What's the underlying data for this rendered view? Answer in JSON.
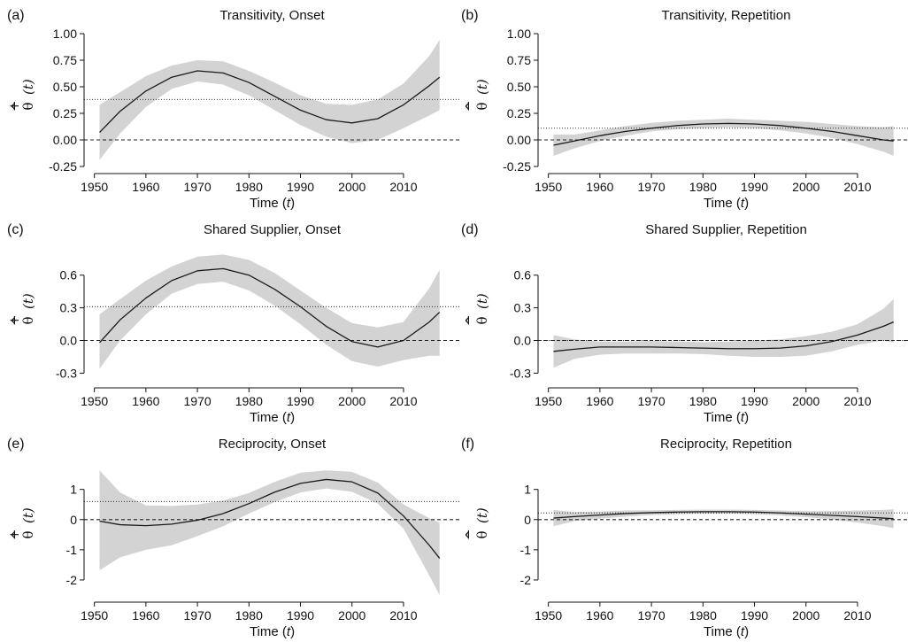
{
  "xlabel": {
    "prefix": "Time (",
    "var": "t",
    "suffix": ")"
  },
  "ylabel_onset": {
    "hat": "^",
    "symbol": "θ",
    "sup": "+",
    "arg": "(t)"
  },
  "ylabel_repetition": {
    "hat": "^",
    "symbol": "θ",
    "sup": "−",
    "arg": "(t)"
  },
  "colors": {
    "line": "#1a1a1a",
    "band": "#d3d3d3",
    "axis": "#111111"
  },
  "chart_data": [
    {
      "id": "a",
      "panel_label": "(a)",
      "title": "Transitivity, Onset",
      "kind": "onset",
      "type": "line",
      "x": [
        1951,
        1955,
        1960,
        1965,
        1970,
        1975,
        1980,
        1985,
        1990,
        1995,
        2000,
        2005,
        2010,
        2015,
        2017
      ],
      "y": [
        0.07,
        0.27,
        0.46,
        0.59,
        0.65,
        0.63,
        0.54,
        0.41,
        0.28,
        0.19,
        0.16,
        0.2,
        0.33,
        0.51,
        0.59
      ],
      "lower": [
        -0.19,
        0.06,
        0.31,
        0.48,
        0.55,
        0.52,
        0.42,
        0.28,
        0.14,
        0.03,
        -0.03,
        0.0,
        0.11,
        0.23,
        0.28
      ],
      "upper": [
        0.33,
        0.45,
        0.6,
        0.7,
        0.75,
        0.74,
        0.65,
        0.54,
        0.42,
        0.34,
        0.33,
        0.38,
        0.53,
        0.79,
        0.94
      ],
      "reference": 0.38,
      "xlim": [
        1948,
        2021
      ],
      "ylim": [
        -0.25,
        1.0
      ],
      "xticks": [
        1950,
        1960,
        1970,
        1980,
        1990,
        2000,
        2010
      ],
      "yticks": [
        -0.25,
        0.0,
        0.25,
        0.5,
        0.75,
        1.0
      ],
      "yticklabels": [
        "-0.25",
        "0.00",
        "0.25",
        "0.50",
        "0.75",
        "1.00"
      ]
    },
    {
      "id": "b",
      "panel_label": "(b)",
      "title": "Transitivity, Repetition",
      "kind": "repetition",
      "type": "line",
      "x": [
        1951,
        1955,
        1960,
        1965,
        1970,
        1975,
        1980,
        1985,
        1990,
        1995,
        2000,
        2005,
        2010,
        2015,
        2017
      ],
      "y": [
        -0.05,
        -0.01,
        0.04,
        0.08,
        0.11,
        0.135,
        0.15,
        0.155,
        0.15,
        0.135,
        0.11,
        0.08,
        0.04,
        0.0,
        -0.01
      ],
      "lower": [
        -0.15,
        -0.08,
        -0.01,
        0.04,
        0.08,
        0.1,
        0.11,
        0.12,
        0.11,
        0.09,
        0.06,
        0.02,
        -0.04,
        -0.11,
        -0.15
      ],
      "upper": [
        0.05,
        0.05,
        0.09,
        0.13,
        0.16,
        0.18,
        0.19,
        0.2,
        0.19,
        0.18,
        0.17,
        0.15,
        0.13,
        0.12,
        0.13
      ],
      "reference": 0.11,
      "xlim": [
        1948,
        2021
      ],
      "ylim": [
        -0.25,
        1.0
      ],
      "xticks": [
        1950,
        1960,
        1970,
        1980,
        1990,
        2000,
        2010
      ],
      "yticks": [
        -0.25,
        0.0,
        0.25,
        0.5,
        0.75,
        1.0
      ],
      "yticklabels": [
        "-0.25",
        "0.00",
        "0.25",
        "0.50",
        "0.75",
        "1.00"
      ]
    },
    {
      "id": "c",
      "panel_label": "(c)",
      "title": "Shared Supplier, Onset",
      "kind": "onset",
      "type": "line",
      "x": [
        1951,
        1955,
        1960,
        1965,
        1970,
        1975,
        1980,
        1985,
        1990,
        1995,
        2000,
        2005,
        2010,
        2015,
        2017
      ],
      "y": [
        -0.02,
        0.19,
        0.39,
        0.55,
        0.64,
        0.66,
        0.6,
        0.47,
        0.31,
        0.13,
        -0.01,
        -0.06,
        0.0,
        0.17,
        0.26
      ],
      "lower": [
        -0.26,
        0.0,
        0.24,
        0.43,
        0.52,
        0.54,
        0.46,
        0.32,
        0.15,
        -0.04,
        -0.19,
        -0.24,
        -0.18,
        -0.14,
        -0.14
      ],
      "upper": [
        0.24,
        0.38,
        0.55,
        0.68,
        0.77,
        0.79,
        0.74,
        0.62,
        0.46,
        0.3,
        0.16,
        0.12,
        0.17,
        0.48,
        0.65
      ],
      "reference": 0.31,
      "xlim": [
        1948,
        2021
      ],
      "ylim": [
        -0.37,
        0.85
      ],
      "xticks": [
        1950,
        1960,
        1970,
        1980,
        1990,
        2000,
        2010
      ],
      "yticks": [
        -0.3,
        0.0,
        0.3,
        0.6
      ],
      "yticklabels": [
        "-0.3",
        "0.0",
        "0.3",
        "0.6"
      ]
    },
    {
      "id": "d",
      "panel_label": "(d)",
      "title": "Shared Supplier, Repetition",
      "kind": "repetition",
      "type": "line",
      "x": [
        1951,
        1955,
        1960,
        1965,
        1970,
        1975,
        1980,
        1985,
        1990,
        1995,
        2000,
        2005,
        2010,
        2015,
        2017
      ],
      "y": [
        -0.1,
        -0.08,
        -0.06,
        -0.06,
        -0.06,
        -0.065,
        -0.07,
        -0.075,
        -0.075,
        -0.07,
        -0.05,
        -0.01,
        0.05,
        0.13,
        0.17
      ],
      "lower": [
        -0.25,
        -0.17,
        -0.13,
        -0.12,
        -0.12,
        -0.12,
        -0.125,
        -0.14,
        -0.15,
        -0.15,
        -0.14,
        -0.1,
        -0.04,
        0.0,
        -0.02
      ],
      "upper": [
        0.05,
        0.01,
        -0.01,
        -0.01,
        -0.005,
        -0.01,
        -0.015,
        -0.01,
        0.0,
        0.01,
        0.04,
        0.08,
        0.15,
        0.29,
        0.38
      ],
      "reference": 0.0,
      "xlim": [
        1948,
        2021
      ],
      "ylim": [
        -0.37,
        0.85
      ],
      "xticks": [
        1950,
        1960,
        1970,
        1980,
        1990,
        2000,
        2010
      ],
      "yticks": [
        -0.3,
        0.0,
        0.3,
        0.6
      ],
      "yticklabels": [
        "-0.3",
        "0.0",
        "0.3",
        "0.6"
      ]
    },
    {
      "id": "e",
      "panel_label": "(e)",
      "title": "Reciprocity, Onset",
      "kind": "onset",
      "type": "line",
      "x": [
        1951,
        1955,
        1960,
        1965,
        1970,
        1975,
        1980,
        1985,
        1990,
        1995,
        2000,
        2005,
        2010,
        2015,
        2017
      ],
      "y": [
        -0.05,
        -0.17,
        -0.2,
        -0.15,
        -0.02,
        0.2,
        0.53,
        0.91,
        1.2,
        1.33,
        1.25,
        0.88,
        0.12,
        -0.85,
        -1.28
      ],
      "lower": [
        -1.68,
        -1.25,
        -1.0,
        -0.85,
        -0.55,
        -0.22,
        0.2,
        0.58,
        0.9,
        1.03,
        0.92,
        0.53,
        -0.3,
        -1.85,
        -2.5
      ],
      "upper": [
        1.63,
        0.9,
        0.47,
        0.45,
        0.5,
        0.63,
        0.88,
        1.25,
        1.55,
        1.63,
        1.58,
        1.23,
        0.5,
        0.05,
        -0.1
      ],
      "reference": 0.6,
      "xlim": [
        1948,
        2021
      ],
      "ylim": [
        -2.5,
        1.9
      ],
      "xticks": [
        1950,
        1960,
        1970,
        1980,
        1990,
        2000,
        2010
      ],
      "yticks": [
        -2,
        -1,
        0,
        1
      ],
      "yticklabels": [
        "-2",
        "-1",
        "0",
        "1"
      ]
    },
    {
      "id": "f",
      "panel_label": "(f)",
      "title": "Reciprocity, Repetition",
      "kind": "repetition",
      "type": "line",
      "x": [
        1951,
        1955,
        1960,
        1965,
        1970,
        1975,
        1980,
        1985,
        1990,
        1995,
        2000,
        2005,
        2010,
        2015,
        2017
      ],
      "y": [
        0.05,
        0.1,
        0.15,
        0.2,
        0.23,
        0.25,
        0.26,
        0.26,
        0.25,
        0.22,
        0.18,
        0.14,
        0.1,
        0.05,
        0.03
      ],
      "lower": [
        -0.22,
        -0.05,
        0.03,
        0.1,
        0.15,
        0.18,
        0.19,
        0.19,
        0.18,
        0.14,
        0.08,
        0.0,
        -0.1,
        -0.22,
        -0.28
      ],
      "upper": [
        0.32,
        0.25,
        0.27,
        0.3,
        0.31,
        0.32,
        0.33,
        0.33,
        0.32,
        0.3,
        0.28,
        0.28,
        0.3,
        0.32,
        0.34
      ],
      "reference": 0.22,
      "xlim": [
        1948,
        2021
      ],
      "ylim": [
        -2.5,
        1.9
      ],
      "xticks": [
        1950,
        1960,
        1970,
        1980,
        1990,
        2000,
        2010
      ],
      "yticks": [
        -2,
        -1,
        0,
        1
      ],
      "yticklabels": [
        "-2",
        "-1",
        "0",
        "1"
      ]
    }
  ]
}
